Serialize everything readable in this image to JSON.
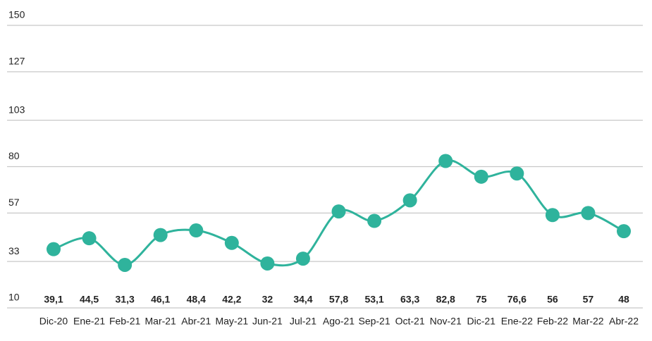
{
  "chart_data": {
    "type": "line",
    "categories": [
      "Dic-20",
      "Ene-21",
      "Feb-21",
      "Mar-21",
      "Abr-21",
      "May-21",
      "Jun-21",
      "Jul-21",
      "Ago-21",
      "Sep-21",
      "Oct-21",
      "Nov-21",
      "Dic-21",
      "Ene-22",
      "Feb-22",
      "Mar-22",
      "Abr-22"
    ],
    "values": [
      39.1,
      44.5,
      31.3,
      46.1,
      48.4,
      42.2,
      32,
      34.4,
      57.8,
      53.1,
      63.3,
      82.8,
      75,
      76.6,
      56,
      57,
      48
    ],
    "value_labels": [
      "39,1",
      "44,5",
      "31,3",
      "46,1",
      "48,4",
      "42,2",
      "32",
      "34,4",
      "57,8",
      "53,1",
      "63,3",
      "82,8",
      "75",
      "76,6",
      "56",
      "57",
      "48"
    ],
    "color": "#2fb39c",
    "ylim": [
      10,
      150
    ],
    "yticks": [
      10,
      33,
      57,
      80,
      103,
      127,
      150
    ],
    "grid": true
  }
}
